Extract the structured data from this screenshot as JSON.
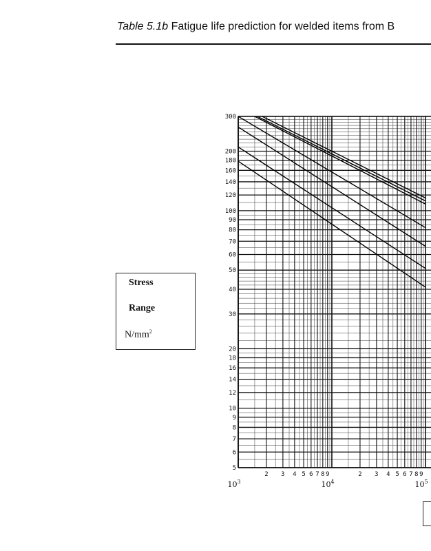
{
  "header": {
    "table_number": "Table 5.1b",
    "title": "Fatigue life prediction for welded items from B"
  },
  "chart_data": {
    "type": "line",
    "title": "Fatigue life prediction for welded items from B",
    "ylabel_lines": [
      "Stress",
      "Range",
      "N/mm"
    ],
    "ylabel_superscript": "2",
    "xscale": "log",
    "yscale": "log",
    "xlim": [
      1000,
      100000
    ],
    "ylim": [
      5,
      300
    ],
    "grid": true,
    "y_ticks": [
      {
        "value": 300,
        "label": "300"
      },
      {
        "value": 200,
        "label": "200"
      },
      {
        "value": 180,
        "label": "180"
      },
      {
        "value": 160,
        "label": "160"
      },
      {
        "value": 140,
        "label": "140"
      },
      {
        "value": 120,
        "label": "120"
      },
      {
        "value": 100,
        "label": "100"
      },
      {
        "value": 90,
        "label": "90"
      },
      {
        "value": 80,
        "label": "80"
      },
      {
        "value": 70,
        "label": "70"
      },
      {
        "value": 60,
        "label": "60"
      },
      {
        "value": 50,
        "label": "50"
      },
      {
        "value": 40,
        "label": "40"
      },
      {
        "value": 30,
        "label": "30"
      },
      {
        "value": 20,
        "label": "20"
      },
      {
        "value": 18,
        "label": "18"
      },
      {
        "value": 16,
        "label": "16"
      },
      {
        "value": 14,
        "label": "14"
      },
      {
        "value": 12,
        "label": "12"
      },
      {
        "value": 10,
        "label": "10"
      },
      {
        "value": 9,
        "label": "9"
      },
      {
        "value": 8,
        "label": "8"
      },
      {
        "value": 7,
        "label": "7"
      },
      {
        "value": 6,
        "label": "6"
      },
      {
        "value": 5,
        "label": "5"
      }
    ],
    "x_minor_ticks": [
      {
        "value": 2000,
        "label": "2"
      },
      {
        "value": 3000,
        "label": "3"
      },
      {
        "value": 4000,
        "label": "4"
      },
      {
        "value": 5000,
        "label": "5"
      },
      {
        "value": 6000,
        "label": "6"
      },
      {
        "value": 7000,
        "label": "7"
      },
      {
        "value": 8000,
        "label": "8"
      },
      {
        "value": 9000,
        "label": "9"
      },
      {
        "value": 20000,
        "label": "2"
      },
      {
        "value": 30000,
        "label": "3"
      },
      {
        "value": 40000,
        "label": "4"
      },
      {
        "value": 50000,
        "label": "5"
      },
      {
        "value": 60000,
        "label": "6"
      },
      {
        "value": 70000,
        "label": "7"
      },
      {
        "value": 80000,
        "label": "8"
      },
      {
        "value": 90000,
        "label": "9"
      }
    ],
    "x_decade_ticks": [
      {
        "value": 1000,
        "base": "10",
        "exp": "3"
      },
      {
        "value": 10000,
        "base": "10",
        "exp": "4"
      },
      {
        "value": 100000,
        "base": "10",
        "exp": "5"
      }
    ],
    "series": [
      {
        "points": [
          [
            1500,
            300
          ],
          [
            100000,
            108
          ]
        ]
      },
      {
        "points": [
          [
            1600,
            300
          ],
          [
            100000,
            112
          ]
        ]
      },
      {
        "points": [
          [
            1800,
            300
          ],
          [
            100000,
            116
          ]
        ]
      },
      {
        "points": [
          [
            1000,
            300
          ],
          [
            100000,
            82
          ]
        ]
      },
      {
        "points": [
          [
            1000,
            265
          ],
          [
            100000,
            66
          ]
        ]
      },
      {
        "points": [
          [
            1000,
            210
          ],
          [
            100000,
            51
          ]
        ]
      },
      {
        "points": [
          [
            1000,
            178
          ],
          [
            100000,
            41
          ]
        ]
      }
    ]
  }
}
